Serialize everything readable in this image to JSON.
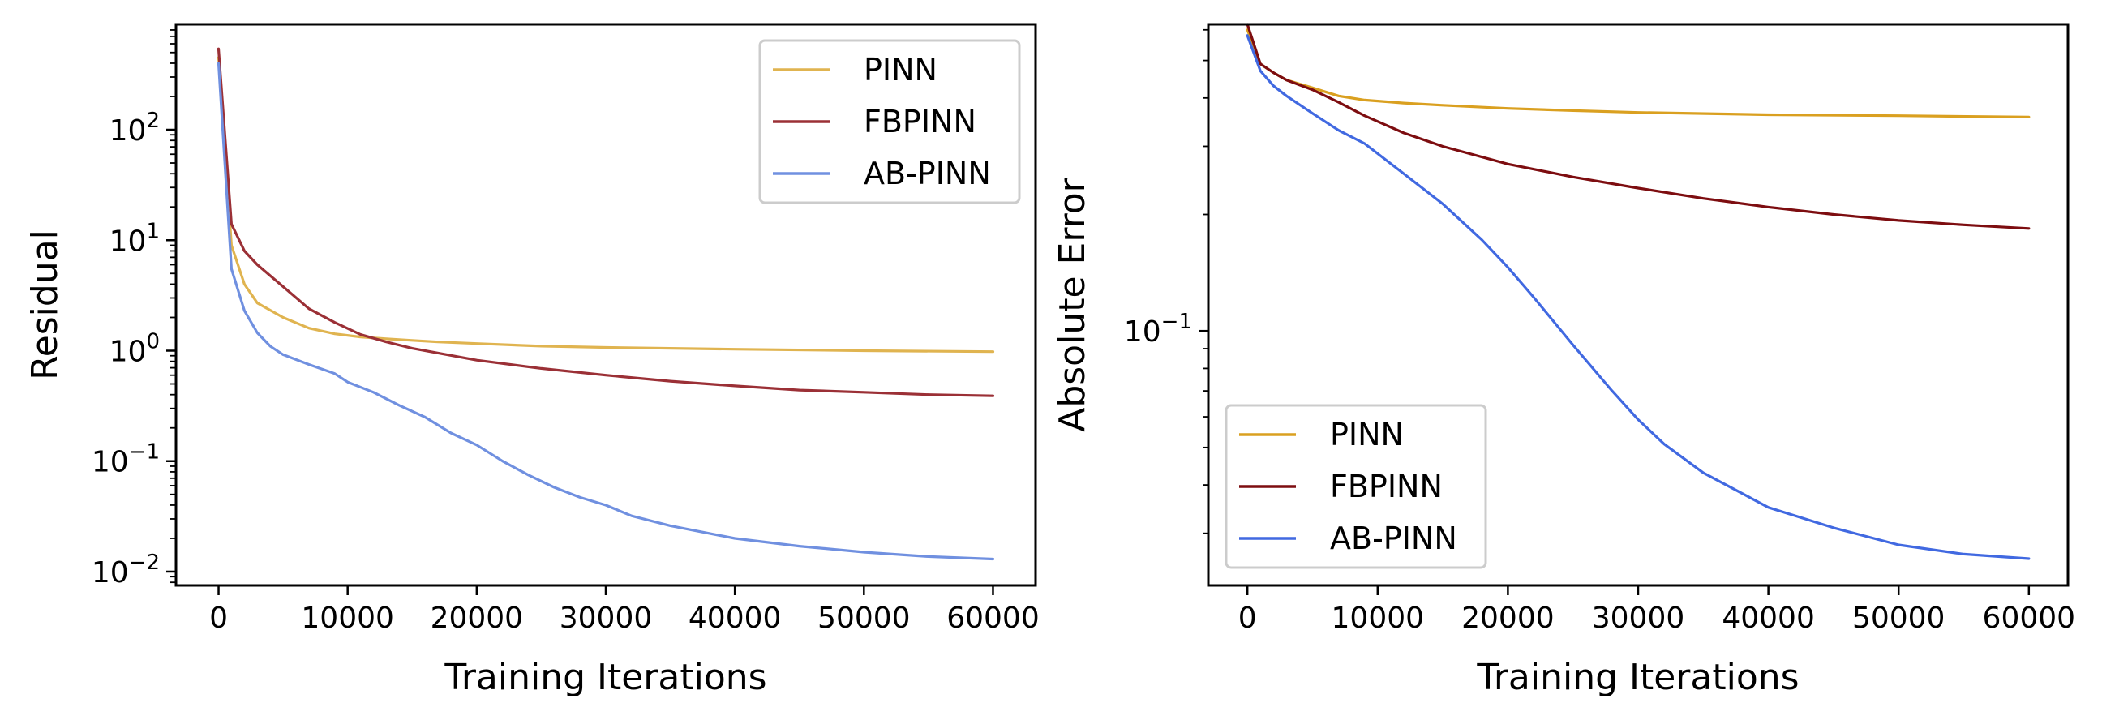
{
  "chart_data": [
    {
      "type": "line",
      "xlabel": "Training Iterations",
      "ylabel": "Residual",
      "yscale": "log",
      "xlim": [
        -3300,
        63300
      ],
      "ylim": [
        0.0075,
        900
      ],
      "xticks": [
        0,
        10000,
        20000,
        30000,
        40000,
        50000,
        60000
      ],
      "xtick_labels": [
        "0",
        "10000",
        "20000",
        "30000",
        "40000",
        "50000",
        "60000"
      ],
      "ytick_exponents": [
        -2,
        -1,
        0,
        1,
        2
      ],
      "ytick_base": "10",
      "legend_position": "upper right",
      "series": [
        {
          "name": "PINN",
          "color": "#e0b450",
          "x": [
            0,
            1000,
            2000,
            3000,
            5000,
            7000,
            9000,
            11000,
            13000,
            15000,
            17000,
            20000,
            25000,
            30000,
            40000,
            50000,
            60000
          ],
          "y": [
            450,
            9,
            4,
            2.7,
            2.0,
            1.6,
            1.42,
            1.33,
            1.28,
            1.24,
            1.2,
            1.16,
            1.1,
            1.07,
            1.03,
            1.0,
            0.98
          ]
        },
        {
          "name": "FBPINN",
          "color": "#9b3036",
          "x": [
            0,
            1000,
            2000,
            3000,
            5000,
            7000,
            9000,
            11000,
            13000,
            15000,
            20000,
            25000,
            30000,
            35000,
            40000,
            45000,
            50000,
            55000,
            60000
          ],
          "y": [
            540,
            14,
            8,
            6,
            3.8,
            2.4,
            1.8,
            1.4,
            1.2,
            1.05,
            0.82,
            0.69,
            0.6,
            0.53,
            0.48,
            0.44,
            0.42,
            0.4,
            0.39
          ]
        },
        {
          "name": "AB-PINN",
          "color": "#7090e0",
          "x": [
            0,
            1000,
            2000,
            3000,
            4000,
            5000,
            7000,
            9000,
            10000,
            12000,
            14000,
            16000,
            18000,
            20000,
            22000,
            24000,
            26000,
            28000,
            30000,
            32000,
            35000,
            40000,
            45000,
            50000,
            55000,
            60000
          ],
          "y": [
            400,
            5.5,
            2.3,
            1.45,
            1.1,
            0.92,
            0.75,
            0.62,
            0.52,
            0.42,
            0.32,
            0.25,
            0.18,
            0.14,
            0.1,
            0.075,
            0.058,
            0.047,
            0.04,
            0.032,
            0.026,
            0.02,
            0.017,
            0.015,
            0.0137,
            0.013
          ]
        }
      ]
    },
    {
      "type": "line",
      "xlabel": "Training Iterations",
      "ylabel": "Absolute Error",
      "yscale": "log",
      "xlim": [
        -3000,
        63000
      ],
      "ylim": [
        0.022,
        0.62
      ],
      "xticks": [
        0,
        10000,
        20000,
        30000,
        40000,
        50000,
        60000
      ],
      "xtick_labels": [
        "0",
        "10000",
        "20000",
        "30000",
        "40000",
        "50000",
        "60000"
      ],
      "ytick_exponents": [
        -1
      ],
      "ytick_base": "10",
      "legend_position": "lower left",
      "series": [
        {
          "name": "PINN",
          "color": "#daa020",
          "x": [
            0,
            1000,
            2000,
            3000,
            5000,
            7000,
            9000,
            12000,
            15000,
            20000,
            25000,
            30000,
            40000,
            50000,
            60000
          ],
          "y": [
            0.6,
            0.49,
            0.465,
            0.445,
            0.425,
            0.405,
            0.395,
            0.388,
            0.383,
            0.376,
            0.371,
            0.367,
            0.362,
            0.36,
            0.357
          ]
        },
        {
          "name": "FBPINN",
          "color": "#7d0d10",
          "x": [
            0,
            1000,
            2000,
            3000,
            5000,
            7000,
            9000,
            12000,
            15000,
            20000,
            25000,
            30000,
            35000,
            40000,
            45000,
            50000,
            55000,
            60000
          ],
          "y": [
            0.62,
            0.49,
            0.465,
            0.445,
            0.42,
            0.39,
            0.36,
            0.325,
            0.3,
            0.27,
            0.25,
            0.234,
            0.22,
            0.209,
            0.2,
            0.193,
            0.188,
            0.184
          ]
        },
        {
          "name": "AB-PINN",
          "color": "#4169e1",
          "x": [
            0,
            1000,
            2000,
            3000,
            5000,
            7000,
            9000,
            12000,
            15000,
            18000,
            20000,
            22000,
            25000,
            28000,
            30000,
            32000,
            35000,
            38000,
            40000,
            45000,
            50000,
            55000,
            60000
          ],
          "y": [
            0.58,
            0.47,
            0.43,
            0.405,
            0.365,
            0.33,
            0.305,
            0.255,
            0.213,
            0.172,
            0.146,
            0.122,
            0.092,
            0.07,
            0.059,
            0.051,
            0.043,
            0.038,
            0.035,
            0.031,
            0.028,
            0.0265,
            0.0258
          ]
        }
      ]
    }
  ]
}
